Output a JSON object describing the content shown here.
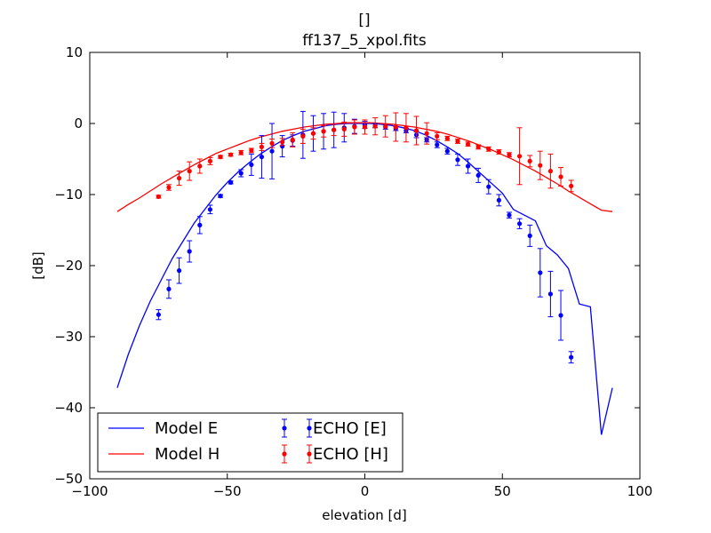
{
  "chart_data": {
    "type": "line",
    "title": "[]",
    "subtitle": "ff137_5_xpol.fits",
    "x_label": "elevation [d]",
    "y_label": "[dB]",
    "xlim": [
      -100,
      100
    ],
    "ylim": [
      -50,
      10
    ],
    "xticks": [
      {
        "value": -100,
        "label": "−100"
      },
      {
        "value": -50,
        "label": "−50"
      },
      0,
      50,
      100
    ],
    "yticks": [
      {
        "value": -50,
        "label": "−50"
      },
      {
        "value": -40,
        "label": "−40"
      },
      {
        "value": -30,
        "label": "−30"
      },
      {
        "value": -20,
        "label": "−20"
      },
      {
        "value": -10,
        "label": "−10"
      },
      0,
      10
    ],
    "legend": "lower left",
    "legend_columns": 2,
    "series": [
      {
        "name": "Model E",
        "color": "#0000ff",
        "kind": "line",
        "x": [
          -90,
          -86,
          -82,
          -78,
          -74,
          -70,
          -66,
          -62,
          -58,
          -54,
          -50,
          -46,
          -42,
          -38,
          -34,
          -30,
          -26,
          -22,
          -18,
          -14,
          -10,
          -6,
          -2,
          2,
          6,
          10,
          14,
          18,
          22,
          26,
          30,
          34,
          38,
          42,
          46,
          50,
          54,
          58,
          62,
          66,
          70,
          74,
          78,
          82,
          86,
          90
        ],
        "values": [
          -37.2,
          -32.5,
          -28.5,
          -25,
          -22,
          -19,
          -16.5,
          -14,
          -12,
          -10,
          -8.3,
          -6.8,
          -5.5,
          -4.3,
          -3.3,
          -2.4,
          -1.7,
          -1.1,
          -0.7,
          -0.3,
          -0.1,
          0,
          0,
          0,
          -0.1,
          -0.3,
          -0.6,
          -1,
          -1.6,
          -2.4,
          -3.3,
          -4.3,
          -5.6,
          -7,
          -8.4,
          -9.8,
          -12.1,
          -12.9,
          -13.7,
          -17.2,
          -18.5,
          -20.4,
          -25.4,
          -25.8,
          -43.8,
          -37.2
        ]
      },
      {
        "name": "Model H",
        "color": "#ff0000",
        "kind": "line",
        "x": [
          -90,
          -86,
          -82,
          -78,
          -74,
          -70,
          -66,
          -62,
          -58,
          -54,
          -50,
          -46,
          -42,
          -38,
          -34,
          -30,
          -26,
          -22,
          -18,
          -14,
          -10,
          -6,
          -2,
          2,
          6,
          10,
          14,
          18,
          22,
          26,
          30,
          34,
          38,
          42,
          46,
          50,
          54,
          58,
          62,
          66,
          70,
          74,
          78,
          82,
          86,
          90
        ],
        "values": [
          -12.4,
          -11.4,
          -10.5,
          -9.5,
          -8.5,
          -7.6,
          -6.7,
          -5.8,
          -5,
          -4.2,
          -3.6,
          -3,
          -2.4,
          -1.9,
          -1.5,
          -1.1,
          -0.8,
          -0.5,
          -0.3,
          -0.1,
          0,
          0.1,
          0.1,
          0.1,
          0,
          -0.1,
          -0.3,
          -0.5,
          -0.8,
          -1.1,
          -1.5,
          -2,
          -2.5,
          -3.1,
          -3.7,
          -4.4,
          -5.1,
          -5.9,
          -6.7,
          -7.6,
          -8.5,
          -9.5,
          -10.4,
          -11.3,
          -12.2,
          -12.4
        ]
      },
      {
        "name": "ECHO [E]",
        "color": "#0000ff",
        "kind": "errorbar",
        "x": [
          -75,
          -71.25,
          -67.5,
          -63.75,
          -60,
          -56.25,
          -52.5,
          -48.75,
          -45,
          -41.25,
          -37.5,
          -33.75,
          -30,
          -26.25,
          -22.5,
          -18.75,
          -15,
          -11.25,
          -7.5,
          -3.75,
          0,
          3.75,
          7.5,
          11.25,
          15,
          18.75,
          22.5,
          26.25,
          30,
          33.75,
          37.5,
          41.25,
          45,
          48.75,
          52.5,
          56.25,
          60,
          63.75,
          67.5,
          71.25,
          75
        ],
        "values": [
          -26.9,
          -23.3,
          -20.7,
          -18,
          -14.3,
          -12.1,
          -10.2,
          -8.3,
          -7,
          -5.8,
          -4.7,
          -3.9,
          -3.2,
          -2.4,
          -1.6,
          -1.4,
          -1.1,
          -0.9,
          -0.6,
          -0.4,
          -0.2,
          -0.3,
          -0.5,
          -0.7,
          -1,
          -1.6,
          -2.3,
          -3,
          -3.9,
          -5.1,
          -6,
          -7.3,
          -8.9,
          -10.8,
          -12.9,
          -14.1,
          -15.8,
          -21,
          -24,
          -27,
          -32.9
        ],
        "errors": [
          0.7,
          1.3,
          1.8,
          1.5,
          1.2,
          0.6,
          0.2,
          0.2,
          0.5,
          1.5,
          3,
          3.9,
          1.5,
          0.8,
          3.3,
          2.5,
          2.5,
          2.5,
          2,
          1,
          0.5,
          0.3,
          0.3,
          0.3,
          0.3,
          0.4,
          0.3,
          0.4,
          0.4,
          0.8,
          1,
          1,
          1,
          0.8,
          0.4,
          0.7,
          1.5,
          3.4,
          3.2,
          3.5,
          0.8
        ]
      },
      {
        "name": "ECHO [H]",
        "color": "#ff0000",
        "kind": "errorbar",
        "x": [
          -75,
          -71.25,
          -67.5,
          -63.75,
          -60,
          -56.25,
          -52.5,
          -48.75,
          -45,
          -41.25,
          -37.5,
          -33.75,
          -30,
          -26.25,
          -22.5,
          -18.75,
          -15,
          -11.25,
          -7.5,
          -3.75,
          0,
          3.75,
          7.5,
          11.25,
          15,
          18.75,
          22.5,
          26.25,
          30,
          33.75,
          37.5,
          41.25,
          45,
          48.75,
          52.5,
          56.25,
          60,
          63.75,
          67.5,
          71.25,
          75
        ],
        "values": [
          -10.3,
          -9,
          -7.7,
          -6.7,
          -6,
          -5.3,
          -4.7,
          -4.4,
          -4.1,
          -3.8,
          -3.3,
          -2.8,
          -2.6,
          -2.3,
          -1.8,
          -1.4,
          -1.1,
          -0.9,
          -0.8,
          -0.5,
          -0.5,
          -0.4,
          -0.4,
          -0.5,
          -0.6,
          -1,
          -1.4,
          -1.8,
          -2.1,
          -2.5,
          -2.9,
          -3.3,
          -3.6,
          -4,
          -4.4,
          -4.6,
          -5.3,
          -5.9,
          -6.7,
          -7.5,
          -8.8
        ],
        "errors": [
          0.2,
          0.4,
          1,
          1.3,
          1,
          0.5,
          0.2,
          0.2,
          0.3,
          0.3,
          0.5,
          0.6,
          0.5,
          1,
          1,
          0.8,
          0.8,
          0.8,
          1,
          1,
          1,
          1.2,
          1.5,
          2,
          2,
          2,
          1.5,
          0.5,
          0.3,
          0.3,
          0.3,
          0.3,
          0.3,
          0.3,
          0.3,
          4,
          0.8,
          2,
          2.4,
          1.3,
          0.8
        ]
      }
    ]
  }
}
